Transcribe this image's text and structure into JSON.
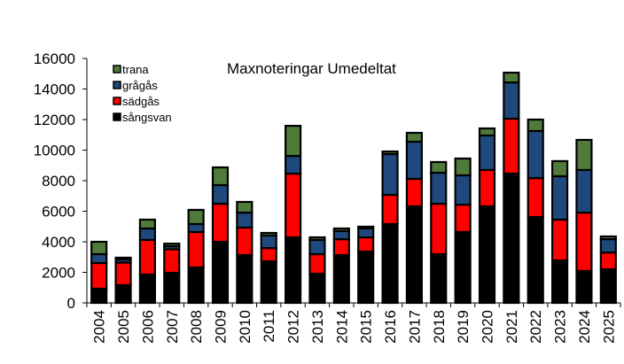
{
  "chart_data": {
    "type": "bar",
    "stacked": true,
    "title": "Maxnoteringar Umedeltat",
    "xlabel": "",
    "ylabel": "",
    "ylim": [
      0,
      16000
    ],
    "yticks": [
      "0",
      "2000",
      "4000",
      "6000",
      "8000",
      "10000",
      "12000",
      "14000",
      "16000"
    ],
    "grid": false,
    "legend_position": "top-left",
    "categories": [
      "2004",
      "2005",
      "2006",
      "2007",
      "2008",
      "2009",
      "2010",
      "2011",
      "2012",
      "2013",
      "2014",
      "2015",
      "2016",
      "2017",
      "2018",
      "2019",
      "2020",
      "2021",
      "2022",
      "2023",
      "2024",
      "2025"
    ],
    "series": [
      {
        "name": "sångsvan",
        "color": "#000000",
        "values": [
          930,
          1160,
          1860,
          1970,
          2320,
          4000,
          3130,
          2720,
          4290,
          1910,
          3130,
          3360,
          5160,
          6320,
          3190,
          4640,
          6320,
          8460,
          5620,
          2780,
          2090,
          2200
        ]
      },
      {
        "name": "sädgås",
        "color": "#ff0000",
        "values": [
          1680,
          1480,
          2260,
          1540,
          2320,
          2490,
          1800,
          870,
          4170,
          1280,
          1040,
          930,
          1910,
          1800,
          3300,
          1790,
          2380,
          3600,
          2550,
          2670,
          3820,
          1100
        ]
      },
      {
        "name": "grågås",
        "color": "#1f497d",
        "values": [
          580,
          200,
          750,
          200,
          520,
          1220,
          980,
          820,
          1160,
          930,
          530,
          580,
          2670,
          2430,
          2030,
          1920,
          2260,
          2370,
          3080,
          2840,
          2790,
          870
        ]
      },
      {
        "name": "trana",
        "color": "#4f7a3a",
        "values": [
          810,
          120,
          580,
          170,
          930,
          1160,
          700,
          170,
          1970,
          170,
          170,
          120,
          170,
          580,
          700,
          1100,
          460,
          640,
          750,
          990,
          1970,
          180
        ]
      }
    ],
    "legend_order": [
      "trana",
      "grågås",
      "sädgås",
      "sångsvan"
    ]
  }
}
